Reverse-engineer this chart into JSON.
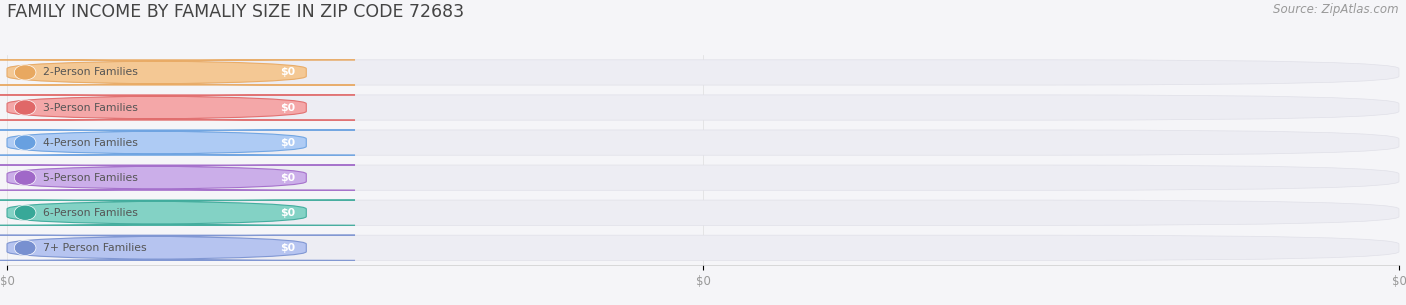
{
  "title": "FAMILY INCOME BY FAMALIY SIZE IN ZIP CODE 72683",
  "source": "Source: ZipAtlas.com",
  "categories": [
    "2-Person Families",
    "3-Person Families",
    "4-Person Families",
    "5-Person Families",
    "6-Person Families",
    "7+ Person Families"
  ],
  "values": [
    0,
    0,
    0,
    0,
    0,
    0
  ],
  "bar_colors": [
    "#f5c48a",
    "#f5a0a0",
    "#a8c8f5",
    "#c8a8e8",
    "#78cfc0",
    "#b0c0f0"
  ],
  "bar_edge_colors": [
    "#e8a860",
    "#e06868",
    "#68a0e0",
    "#a068c8",
    "#38a898",
    "#7890d0"
  ],
  "circle_colors": [
    "#e8a860",
    "#e06868",
    "#68a0e0",
    "#a068c8",
    "#38a898",
    "#7890d0"
  ],
  "bg_color": "#f5f5f8",
  "bar_bg_color": "#ededf3",
  "value_label": "$0",
  "title_fontsize": 12.5,
  "source_fontsize": 8.5,
  "tick_label_fontsize": 8.5,
  "label_fontsize": 7.8,
  "value_fontsize": 7.8
}
